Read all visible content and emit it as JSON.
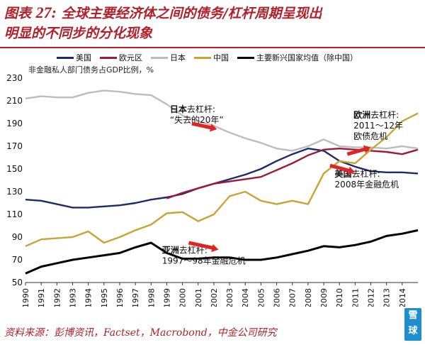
{
  "title": {
    "prefix": "图表",
    "number": "27:",
    "line1": "全球主要经济体之间的债务/杠杆周期呈现出",
    "line2": "明显的不同步的分化现象"
  },
  "source": "资料来源：彭博资讯，Factset，Macrobond，中金公司研究",
  "logo": {
    "line1": "雪",
    "line2": "球"
  },
  "colors": {
    "title": "#b1202b",
    "us": "#1f2a6b",
    "euro": "#9b1b3a",
    "japan": "#bdbdbd",
    "china": "#c8a434",
    "em": "#000000",
    "arrow": "#e02424"
  },
  "chart_data": {
    "type": "line",
    "ylabel": "非金融私人部门债务占GDP比例，%",
    "ylim": [
      50,
      230
    ],
    "yticks": [
      50,
      70,
      90,
      110,
      130,
      150,
      170,
      190,
      210,
      230
    ],
    "xlim": [
      1990,
      2015
    ],
    "xticks": [
      "1990",
      "1991",
      "1992",
      "1993",
      "1994",
      "1995",
      "1996",
      "1997",
      "1998",
      "1999",
      "2000",
      "2001",
      "2002",
      "2003",
      "2004",
      "2005",
      "2006",
      "2007",
      "2008",
      "2009",
      "2010",
      "2011",
      "2012",
      "2013",
      "2014"
    ],
    "grid": false,
    "legend_position": "top",
    "series": [
      {
        "key": "us",
        "name": "美国",
        "x": [
          1990,
          1991,
          1992,
          1993,
          1994,
          1995,
          1996,
          1997,
          1998,
          1999,
          2000,
          2001,
          2002,
          2003,
          2004,
          2005,
          2006,
          2007,
          2008,
          2009,
          2010,
          2011,
          2012,
          2013,
          2014,
          2015
        ],
        "values": [
          123,
          122,
          119,
          116,
          116,
          117,
          118,
          120,
          123,
          125,
          128,
          133,
          137,
          141,
          145,
          150,
          157,
          163,
          168,
          166,
          157,
          152,
          148,
          147,
          147,
          146
        ]
      },
      {
        "key": "euro",
        "name": "欧元区",
        "x": [
          1999,
          2000,
          2001,
          2002,
          2003,
          2004,
          2005,
          2006,
          2007,
          2008,
          2009,
          2010,
          2011,
          2012,
          2013,
          2014,
          2015
        ],
        "values": [
          124,
          129,
          133,
          137,
          139,
          141,
          143,
          149,
          155,
          162,
          167,
          168,
          167,
          166,
          165,
          163,
          167
        ]
      },
      {
        "key": "japan",
        "name": "日本",
        "x": [
          1990,
          1991,
          1992,
          1993,
          1994,
          1995,
          1996,
          1997,
          1998,
          1999,
          2000,
          2001,
          2002,
          2003,
          2004,
          2005,
          2006,
          2007,
          2008,
          2009,
          2010,
          2011,
          2012,
          2013,
          2014,
          2015
        ],
        "values": [
          212,
          214,
          213,
          213,
          217,
          219,
          218,
          216,
          215,
          207,
          197,
          192,
          188,
          182,
          177,
          173,
          168,
          166,
          170,
          176,
          170,
          169,
          169,
          168,
          170,
          168
        ]
      },
      {
        "key": "china",
        "name": "中国",
        "x": [
          1990,
          1991,
          1992,
          1993,
          1994,
          1995,
          1996,
          1997,
          1998,
          1999,
          2000,
          2001,
          2002,
          2003,
          2004,
          2005,
          2006,
          2007,
          2008,
          2009,
          2010,
          2011,
          2012,
          2013,
          2014,
          2015
        ],
        "values": [
          82,
          88,
          89,
          90,
          95,
          85,
          90,
          96,
          101,
          111,
          112,
          104,
          110,
          126,
          130,
          122,
          119,
          122,
          119,
          146,
          157,
          155,
          167,
          178,
          192,
          199
        ]
      },
      {
        "key": "em",
        "name": "主要新兴国家均值（除中国）",
        "x": [
          1990,
          1991,
          1992,
          1993,
          1994,
          1995,
          1996,
          1997,
          1998,
          1999,
          2000,
          2001,
          2002,
          2003,
          2004,
          2005,
          2006,
          2007,
          2008,
          2009,
          2010,
          2011,
          2012,
          2013,
          2014,
          2015
        ],
        "values": [
          58,
          64,
          67,
          70,
          72,
          74,
          76,
          81,
          85,
          76,
          71,
          71,
          72,
          72,
          70,
          70,
          72,
          75,
          78,
          82,
          81,
          83,
          86,
          91,
          93,
          96
        ]
      }
    ],
    "annotations": [
      {
        "key": "japan",
        "bold": "日本",
        "text": "去杠杆:",
        "line2": "“失去的20年”"
      },
      {
        "key": "euro",
        "bold": "欧洲",
        "text": "去杠杆:",
        "line2": "2011～12年",
        "line3": "欧债危机"
      },
      {
        "key": "us",
        "bold": "美国",
        "text": "去杠杆:",
        "line2": "2008年金融危机"
      },
      {
        "key": "asia",
        "bold": "亚洲",
        "text": "去杠杆:",
        "line2": "1997～98年金融危机"
      }
    ]
  }
}
